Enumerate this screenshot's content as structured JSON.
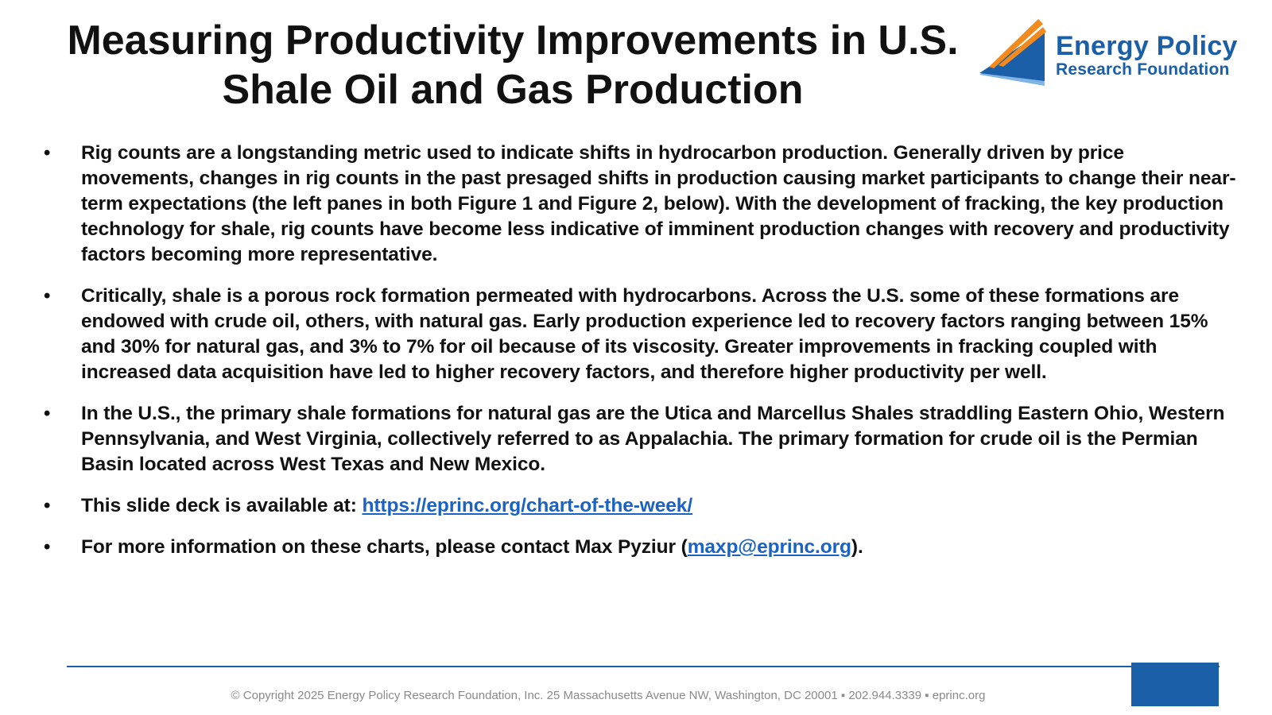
{
  "title": {
    "line1": "Measuring Productivity Improvements in U.S.",
    "line2": "Shale Oil and Gas Production"
  },
  "logo": {
    "line1": "Energy Policy",
    "line2": "Research Foundation",
    "icon": "epr-sail-logo-icon",
    "colors": {
      "blue": "#1a5fa8",
      "light_blue": "#7fb2e5",
      "orange": "#f28a1e"
    }
  },
  "bullets": [
    {
      "text": "Rig counts are a longstanding metric used to indicate shifts in hydrocarbon production. Generally driven by price movements, changes in rig counts in the past presaged shifts in production causing market participants to change their near-term expectations (the left panes in both Figure 1 and Figure 2, below). With the development of fracking, the key production technology for shale, rig counts have become less indicative of imminent production changes with recovery and productivity factors becoming more representative."
    },
    {
      "text": "Critically, shale is a porous rock formation permeated with hydrocarbons. Across the U.S. some of these formations are endowed with crude oil, others, with natural gas. Early production experience led to recovery factors ranging between 15% and 30% for natural gas, and 3% to 7% for oil because of its viscosity. Greater improvements in fracking coupled with increased data acquisition have led to higher recovery factors, and therefore higher productivity per well."
    },
    {
      "text": "In the U.S., the primary shale formations for natural gas are the Utica and Marcellus Shales straddling Eastern Ohio, Western Pennsylvania, and West Virginia, collectively referred to as Appalachia. The primary formation for crude oil is the Permian Basin located across West Texas and New Mexico."
    },
    {
      "prefix": "This slide deck is available at: ",
      "link": "https://eprinc.org/chart-of-the-week/"
    },
    {
      "prefix": "For more information on these charts, please contact Max Pyziur (",
      "link": "maxp@eprinc.org",
      "suffix": ")."
    }
  ],
  "bullet_symbol": "•",
  "footer": {
    "text": "© Copyright 2025 Energy Policy Research Foundation, Inc. 25 Massachusetts Avenue NW, Washington, DC 20001 ▪ 202.944.3339 ▪ eprinc.org"
  },
  "colors": {
    "accent": "#1a5fa8",
    "link": "#1a63c4",
    "footer_text": "#8a8a8a"
  }
}
